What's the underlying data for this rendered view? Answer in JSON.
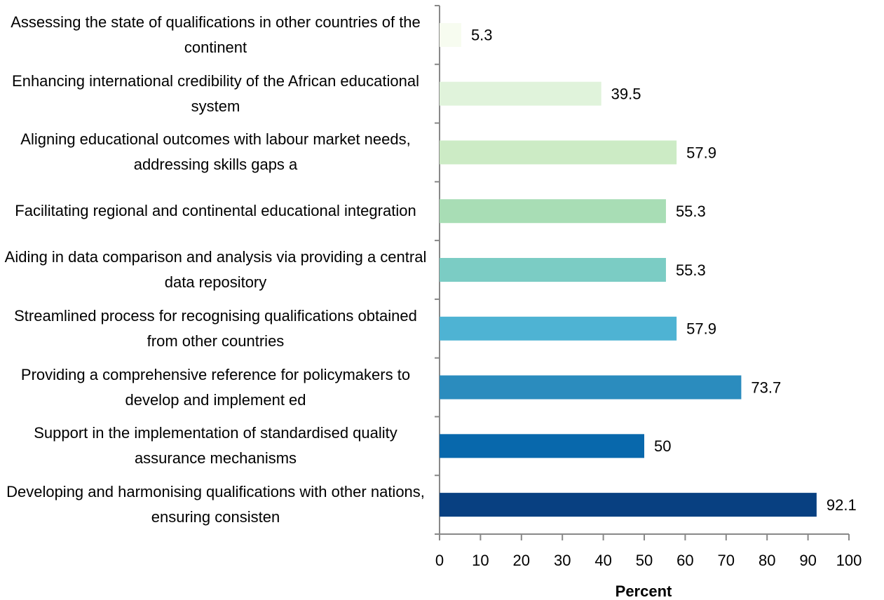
{
  "chart_data": {
    "type": "barh",
    "categories": [
      "Assessing the state of qualifications in other countries of the continent",
      "Enhancing international credibility of the African educational system",
      "Aligning educational outcomes with labour market needs, addressing skills gaps a",
      "Facilitating regional and continental educational integration",
      "Aiding in data comparison and analysis via providing a central data repository",
      "Streamlined process for recognising qualifications obtained from other countries",
      "Providing a comprehensive reference for policymakers to develop and implement ed",
      "Support in the implementation of standardised quality assurance mechanisms",
      "Developing and harmonising qualifications with other nations, ensuring consisten"
    ],
    "values": [
      5.3,
      39.5,
      57.9,
      55.3,
      55.3,
      57.9,
      73.7,
      50,
      92.1
    ],
    "colors": [
      "#f7fcf0",
      "#e0f3db",
      "#ccebc5",
      "#a8ddb5",
      "#7bccc4",
      "#4eb3d3",
      "#2b8cbe",
      "#0868ac",
      "#084081"
    ],
    "xlabel": "Percent",
    "xlim": [
      0,
      100
    ],
    "xticks": [
      0,
      10,
      20,
      30,
      40,
      50,
      60,
      70,
      80,
      90,
      100
    ],
    "grid": false
  }
}
